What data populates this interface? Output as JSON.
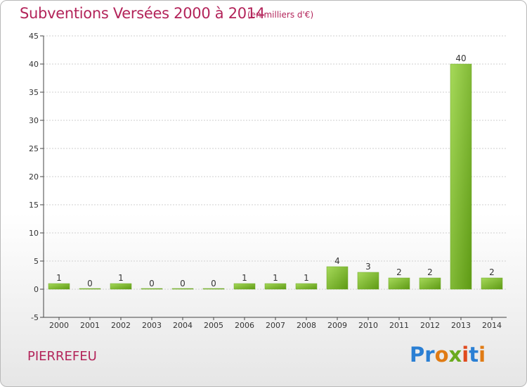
{
  "header": {
    "title": "Subventions Versées 2000 à 2014",
    "subtitle": "(en milliers d'€)"
  },
  "footer": {
    "place": "PIERREFEU",
    "brand": "Proxiti"
  },
  "colors": {
    "title": "#b3245a",
    "bar_top": "#a6d95a",
    "bar_bottom": "#5e9a14",
    "grid": "#cfcfcf"
  },
  "chart_data": {
    "type": "bar",
    "title": "Subventions Versées 2000 à 2014",
    "subtitle": "(en milliers d'€)",
    "categories": [
      "2000",
      "2001",
      "2002",
      "2003",
      "2004",
      "2005",
      "2006",
      "2007",
      "2008",
      "2009",
      "2010",
      "2011",
      "2012",
      "2013",
      "2014"
    ],
    "values": [
      1,
      0,
      1,
      0,
      0,
      0,
      1,
      1,
      1,
      4,
      3,
      2,
      2,
      40,
      2
    ],
    "value_labels": [
      "1",
      "0",
      "1",
      "0",
      "0",
      "0",
      "1",
      "1",
      "1",
      "4",
      "3",
      "2",
      "2",
      "40",
      "2"
    ],
    "ylim": [
      -5,
      45
    ],
    "yticks": [
      -5,
      0,
      5,
      10,
      15,
      20,
      25,
      30,
      35,
      40,
      45
    ],
    "ytick_labels": [
      "-5",
      "0",
      "5",
      "10",
      "15",
      "20",
      "25",
      "30",
      "35",
      "40",
      "45"
    ],
    "xlabel": "",
    "ylabel": "",
    "grid": true,
    "legend": "none"
  }
}
